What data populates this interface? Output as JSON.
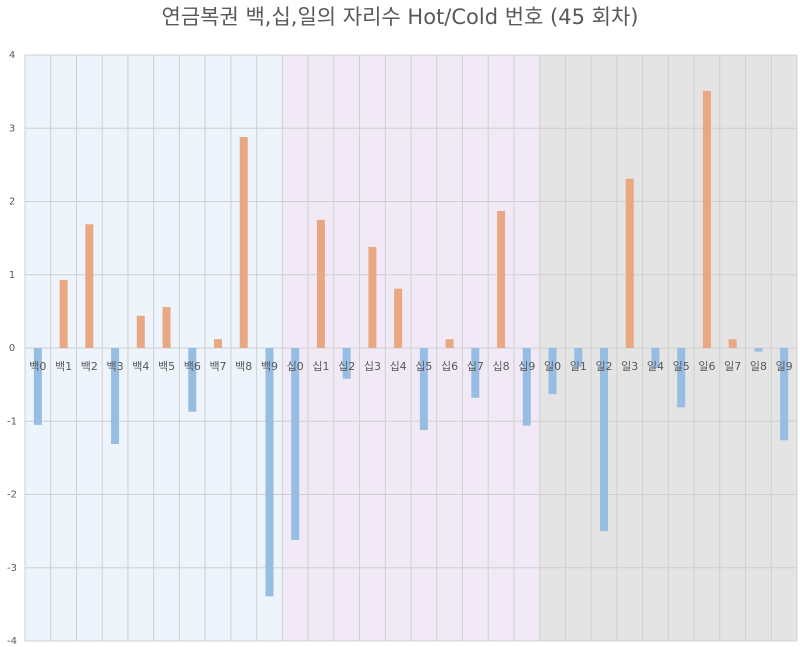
{
  "chart_data": {
    "type": "bar",
    "title": "연금복권 백,십,일의 자리수 Hot/Cold 번호 (45 회차)",
    "categories": [
      "백0",
      "백1",
      "백2",
      "백3",
      "백4",
      "백5",
      "백6",
      "백7",
      "백8",
      "백9",
      "십0",
      "십1",
      "십2",
      "십3",
      "십4",
      "십5",
      "십6",
      "십7",
      "십8",
      "십9",
      "일0",
      "일1",
      "일2",
      "일3",
      "일4",
      "일5",
      "일6",
      "일7",
      "일8",
      "일9"
    ],
    "values": [
      -1.05,
      0.93,
      1.69,
      -1.31,
      0.44,
      0.56,
      -0.87,
      0.12,
      2.88,
      -3.39,
      -2.62,
      1.75,
      -0.42,
      1.38,
      0.81,
      -1.12,
      0.12,
      -0.68,
      1.87,
      -1.06,
      -0.63,
      -0.26,
      -2.5,
      2.31,
      -0.27,
      -0.81,
      3.51,
      0.12,
      -0.05,
      -1.26
    ],
    "positive_color": "#e9a882",
    "negative_color": "#98bde3",
    "background_colors": [
      "#edf4fb",
      "#f1eaf6",
      "#e4e4e4"
    ],
    "ylim": [
      -4,
      4
    ],
    "yticks": [
      -4,
      -3,
      -2,
      -1,
      0,
      1,
      2,
      3,
      4
    ],
    "grid": true
  }
}
